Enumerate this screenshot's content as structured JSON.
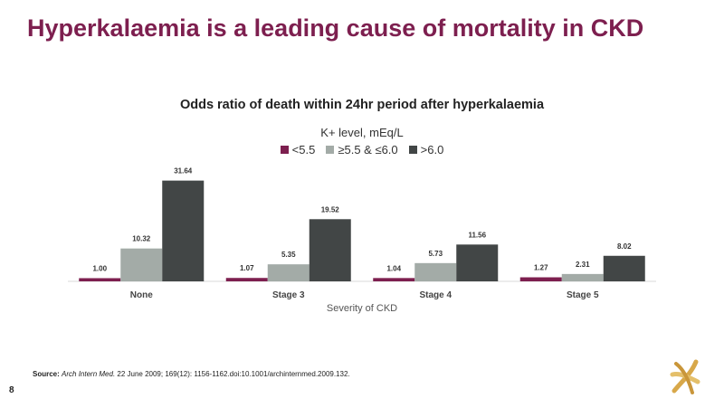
{
  "slide": {
    "title": "Hyperkalaemia is a leading cause of mortality in CKD",
    "page_number": "8",
    "source_label": "Source:",
    "source_journal": "Arch Intern Med.",
    "source_rest": " 22 June 2009; 169(12): 1156-1162.doi:10.1001/archinternmed.2009.132."
  },
  "colors": {
    "title": "#7d1f4f",
    "series": [
      "#7d1f4f",
      "#a3aba7",
      "#424646"
    ]
  },
  "logo": {
    "icon": "company-logo-icon"
  },
  "chart_data": {
    "type": "bar",
    "title": "Odds ratio of death within 24hr period after hyperkalaemia",
    "legend_title": "K+ level, mEq/L",
    "legend_position": "top-center",
    "xlabel": "Severity of CKD",
    "ylabel": "",
    "ylim": [
      0,
      35
    ],
    "grid": false,
    "categories": [
      "None",
      "Stage 3",
      "Stage 4",
      "Stage 5"
    ],
    "series": [
      {
        "name": "<5.5",
        "values": [
          1.0,
          1.07,
          1.04,
          1.27
        ],
        "labels": [
          "1.00",
          "1.07",
          "1.04",
          "1.27"
        ]
      },
      {
        "name": "≥5.5 & ≤6.0",
        "values": [
          10.32,
          5.35,
          5.73,
          2.31
        ],
        "labels": [
          "10.32",
          "5.35",
          "5.73",
          "2.31"
        ]
      },
      {
        "name": ">6.0",
        "values": [
          31.64,
          19.52,
          11.56,
          8.02
        ],
        "labels": [
          "31.64",
          "19.52",
          "11.56",
          "8.02"
        ]
      }
    ]
  }
}
